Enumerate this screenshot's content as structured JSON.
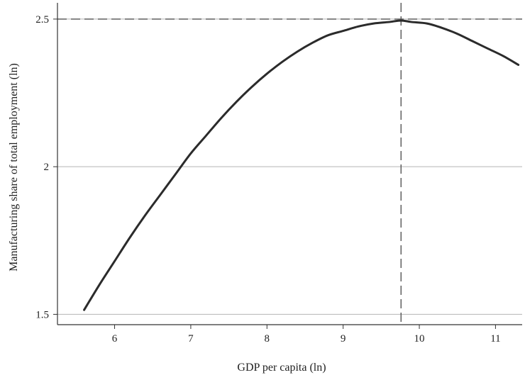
{
  "chart_data": {
    "type": "line",
    "title": "",
    "xlabel": "GDP per capita (ln)",
    "ylabel": "Manufacturing share of total employment (ln)",
    "xlim": [
      5.25,
      11.35
    ],
    "ylim": [
      1.465,
      2.555
    ],
    "x_ticks": [
      6,
      7,
      8,
      9,
      10,
      11
    ],
    "y_ticks": [
      1.5,
      2,
      2.5
    ],
    "x_tick_labels": [
      "6",
      "7",
      "8",
      "9",
      "10",
      "11"
    ],
    "y_tick_labels": [
      "1.5",
      "2",
      "2.5"
    ],
    "grid": "horizontal",
    "legend": "none",
    "series": [
      {
        "x": [
          5.6,
          5.8,
          6.0,
          6.2,
          6.4,
          6.6,
          6.8,
          7.0,
          7.2,
          7.4,
          7.6,
          7.8,
          8.0,
          8.2,
          8.4,
          8.6,
          8.8,
          9.0,
          9.2,
          9.4,
          9.6,
          9.76,
          9.9,
          10.1,
          10.3,
          10.5,
          10.7,
          10.9,
          11.1,
          11.3
        ],
        "values": [
          1.515,
          1.6,
          1.68,
          1.76,
          1.835,
          1.905,
          1.975,
          2.045,
          2.105,
          2.165,
          2.22,
          2.27,
          2.315,
          2.355,
          2.39,
          2.42,
          2.445,
          2.46,
          2.475,
          2.485,
          2.49,
          2.495,
          2.49,
          2.485,
          2.47,
          2.45,
          2.425,
          2.4,
          2.375,
          2.345
        ]
      }
    ],
    "reference_lines": [
      {
        "orientation": "vertical",
        "value": 9.76,
        "style": "dashed"
      },
      {
        "orientation": "horizontal",
        "value": 2.5,
        "style": "dashed"
      }
    ],
    "colors": {
      "line": "#2b2b2b",
      "grid": "#b4b4b4",
      "axis": "#333333",
      "reference": "#555555"
    }
  }
}
